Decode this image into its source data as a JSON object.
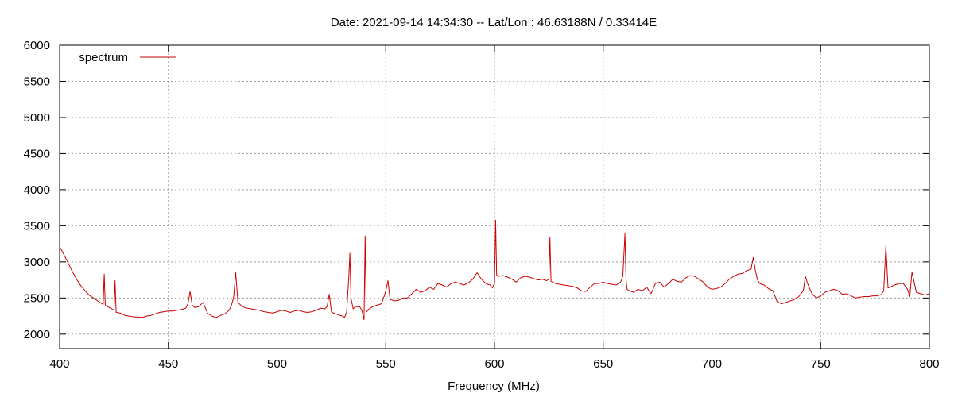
{
  "chart_data": {
    "type": "line",
    "title": "Date: 2021-09-14 14:34:30  --  Lat/Lon : 46.63188N / 0.33414E",
    "xlabel": "Frequency (MHz)",
    "ylabel": "",
    "xlim": [
      400,
      800
    ],
    "ylim": [
      1800,
      6000
    ],
    "xticks": [
      400,
      450,
      500,
      550,
      600,
      650,
      700,
      750,
      800
    ],
    "yticks": [
      2000,
      2500,
      3000,
      3500,
      4000,
      4500,
      5000,
      5500,
      6000
    ],
    "grid": true,
    "legend_position": "top-left",
    "series": [
      {
        "name": "spectrum",
        "color": "#cc0000",
        "x": [
          400,
          402,
          404,
          406,
          408,
          410,
          412,
          414,
          416,
          418,
          419,
          420,
          420.5,
          421,
          422,
          424,
          425,
          425.5,
          426,
          428,
          430,
          432,
          434,
          436,
          438,
          440,
          442,
          444,
          446,
          448,
          450,
          452,
          454,
          456,
          458,
          459,
          460,
          461,
          462,
          464,
          466,
          468,
          470,
          472,
          474,
          476,
          478,
          479,
          480,
          481,
          482,
          484,
          486,
          488,
          490,
          492,
          494,
          496,
          498,
          500,
          502,
          504,
          506,
          508,
          510,
          512,
          514,
          516,
          518,
          520,
          522,
          523,
          524,
          525,
          526,
          528,
          530,
          531,
          532,
          533,
          533.5,
          534,
          535,
          536,
          538,
          539,
          540,
          540.5,
          541,
          542,
          544,
          546,
          548,
          549,
          550,
          551,
          552,
          554,
          556,
          558,
          560,
          562,
          564,
          566,
          568,
          570,
          572,
          574,
          576,
          578,
          580,
          582,
          584,
          586,
          588,
          590,
          592,
          594,
          596,
          598,
          599,
          600,
          600.5,
          601,
          602,
          604,
          606,
          608,
          610,
          612,
          614,
          616,
          618,
          620,
          622,
          624,
          625,
          625.5,
          626,
          628,
          630,
          632,
          634,
          636,
          638,
          640,
          642,
          644,
          646,
          648,
          650,
          652,
          654,
          656,
          658,
          659,
          660,
          660.5,
          661,
          662,
          664,
          666,
          668,
          670,
          672,
          674,
          676,
          678,
          680,
          682,
          684,
          686,
          688,
          690,
          692,
          694,
          696,
          698,
          700,
          702,
          704,
          706,
          708,
          710,
          712,
          714,
          716,
          718,
          719,
          720,
          721,
          722,
          724,
          726,
          728,
          730,
          732,
          734,
          736,
          738,
          740,
          742,
          743,
          744,
          746,
          748,
          750,
          752,
          754,
          756,
          758,
          760,
          762,
          764,
          766,
          768,
          770,
          772,
          774,
          776,
          778,
          779,
          780,
          781,
          782,
          784,
          786,
          788,
          790,
          791,
          792,
          794,
          796,
          798,
          800
        ],
        "y": [
          3210,
          3100,
          2980,
          2860,
          2750,
          2660,
          2590,
          2530,
          2490,
          2450,
          2430,
          2410,
          2830,
          2400,
          2380,
          2350,
          2330,
          2740,
          2300,
          2290,
          2260,
          2250,
          2240,
          2235,
          2230,
          2250,
          2260,
          2280,
          2300,
          2310,
          2320,
          2320,
          2330,
          2340,
          2360,
          2420,
          2590,
          2400,
          2370,
          2380,
          2440,
          2290,
          2250,
          2230,
          2260,
          2280,
          2330,
          2400,
          2500,
          2850,
          2440,
          2380,
          2360,
          2350,
          2340,
          2330,
          2310,
          2300,
          2290,
          2310,
          2330,
          2320,
          2300,
          2320,
          2330,
          2310,
          2300,
          2310,
          2330,
          2360,
          2350,
          2380,
          2550,
          2310,
          2290,
          2270,
          2250,
          2230,
          2300,
          2800,
          3120,
          2500,
          2350,
          2380,
          2380,
          2330,
          2200,
          3360,
          2300,
          2340,
          2380,
          2400,
          2420,
          2500,
          2600,
          2740,
          2480,
          2460,
          2470,
          2500,
          2500,
          2560,
          2620,
          2580,
          2600,
          2650,
          2620,
          2700,
          2680,
          2650,
          2700,
          2720,
          2700,
          2680,
          2710,
          2760,
          2850,
          2760,
          2700,
          2680,
          2640,
          2700,
          3580,
          2820,
          2800,
          2810,
          2790,
          2760,
          2720,
          2780,
          2800,
          2790,
          2770,
          2750,
          2760,
          2740,
          2760,
          3340,
          2730,
          2700,
          2690,
          2680,
          2670,
          2660,
          2640,
          2600,
          2590,
          2650,
          2700,
          2700,
          2720,
          2700,
          2690,
          2680,
          2720,
          2800,
          3390,
          2750,
          2620,
          2600,
          2580,
          2620,
          2600,
          2650,
          2560,
          2700,
          2720,
          2650,
          2700,
          2760,
          2730,
          2720,
          2780,
          2810,
          2800,
          2760,
          2720,
          2650,
          2620,
          2630,
          2650,
          2700,
          2760,
          2800,
          2830,
          2840,
          2880,
          2900,
          3060,
          2880,
          2750,
          2700,
          2680,
          2630,
          2600,
          2450,
          2420,
          2440,
          2460,
          2480,
          2520,
          2600,
          2800,
          2700,
          2560,
          2500,
          2530,
          2580,
          2600,
          2620,
          2600,
          2550,
          2560,
          2530,
          2500,
          2510,
          2520,
          2520,
          2530,
          2530,
          2550,
          2600,
          3220,
          2640,
          2650,
          2680,
          2700,
          2700,
          2620,
          2520,
          2860,
          2580,
          2560,
          2540,
          2560
        ]
      }
    ]
  }
}
